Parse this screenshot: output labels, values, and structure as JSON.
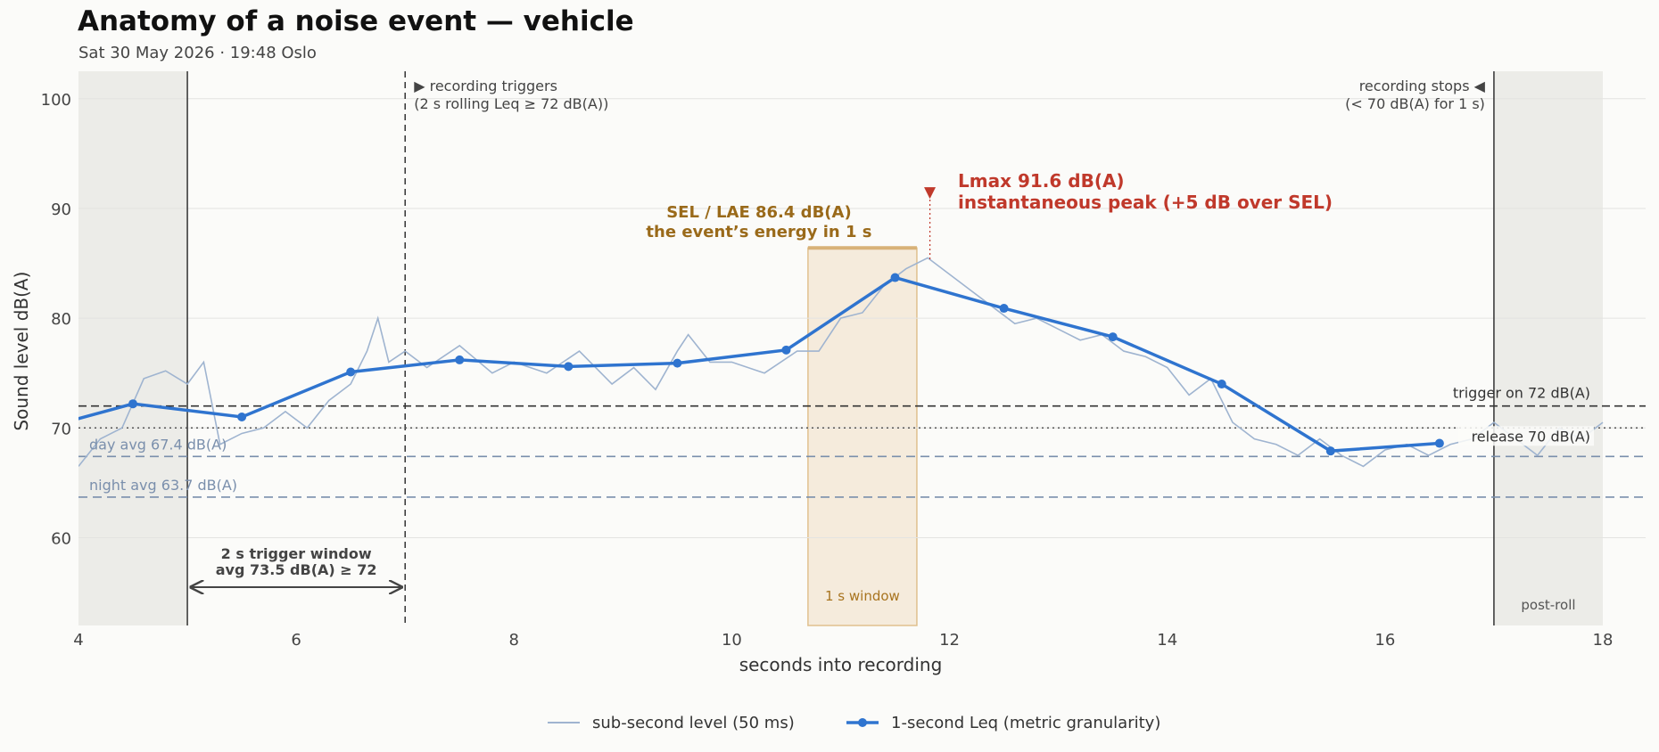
{
  "header": {
    "title": "Anatomy of a noise event — vehicle",
    "subtitle": "Sat 30 May 2026 · 19:48 Oslo"
  },
  "colors": {
    "background": "#fbfbf9",
    "shade": "#ecece8",
    "raw": "#9fb4d0",
    "leq": "#2f74cf",
    "sel_fill": "#f5ebdc",
    "sel_edge": "#e0c08e",
    "sel_text": "#9a6a1a",
    "lmax": "#c0392b",
    "avg_line": "#7a8fac",
    "grid": "#e3e3e1",
    "dark": "#333333"
  },
  "legend": {
    "placement": "bottom-center",
    "raw_label": "sub-second level (50 ms)",
    "leq_label": "1-second Leq (metric granularity)"
  },
  "annotations": {
    "trigger_start": [
      "▶ recording triggers",
      "(2 s rolling Leq ≥ 72 dB(A))"
    ],
    "trigger_stop": [
      "recording stops ◀",
      "(< 70 dB(A) for 1 s)"
    ],
    "sel": [
      "SEL / LAE  86.4 dB(A)",
      "the event’s energy in 1 s"
    ],
    "lmax": [
      "Lmax  91.6 dB(A)",
      "instantaneous peak  (+5 dB over SEL)"
    ],
    "lmax_marker": "▼",
    "trigger_on": "trigger on  72 dB(A)",
    "release": "release  70 dB(A)",
    "day_avg": "day avg  67.4 dB(A)",
    "night_avg": "night avg  63.7 dB(A)",
    "trigger_window": [
      "2 s trigger window",
      "avg 73.5 dB(A) ≥ 72"
    ],
    "window_1s": "1 s window",
    "post_roll": "post-roll"
  },
  "chart_data": {
    "type": "line",
    "xlabel": "seconds into recording",
    "ylabel": "Sound level  dB(A)",
    "xlim": [
      4,
      18
    ],
    "ylim": [
      52,
      102.5
    ],
    "xticks": [
      4,
      6,
      8,
      10,
      12,
      14,
      16,
      18
    ],
    "yticks": [
      60,
      70,
      80,
      90,
      100
    ],
    "grid": "horizontal",
    "series": [
      {
        "name": "1-second Leq (metric granularity)",
        "x": [
          3.5,
          4.5,
          5.5,
          6.5,
          7.5,
          8.5,
          9.5,
          10.5,
          11.5,
          12.5,
          13.5,
          14.5,
          15.5,
          16.5
        ],
        "values": [
          69.5,
          72.2,
          71.0,
          75.1,
          76.2,
          75.6,
          75.9,
          77.1,
          83.7,
          80.9,
          78.3,
          74.0,
          67.9,
          68.6
        ]
      },
      {
        "name": "sub-second level (50 ms)",
        "x": [
          4.0,
          4.2,
          4.4,
          4.6,
          4.8,
          5.0,
          5.15,
          5.3,
          5.5,
          5.7,
          5.9,
          6.1,
          6.3,
          6.5,
          6.65,
          6.75,
          6.85,
          7.0,
          7.2,
          7.5,
          7.8,
          8.0,
          8.3,
          8.6,
          8.9,
          9.1,
          9.3,
          9.5,
          9.6,
          9.8,
          10.0,
          10.3,
          10.6,
          10.8,
          11.0,
          11.2,
          11.4,
          11.6,
          11.8,
          12.0,
          12.2,
          12.4,
          12.6,
          12.8,
          13.0,
          13.2,
          13.4,
          13.6,
          13.8,
          14.0,
          14.2,
          14.4,
          14.6,
          14.8,
          15.0,
          15.2,
          15.4,
          15.6,
          15.8,
          16.0,
          16.2,
          16.4,
          16.6,
          16.8,
          17.0,
          17.2,
          17.4,
          17.6,
          17.8,
          18.0
        ],
        "values": [
          66.5,
          69.0,
          70.0,
          74.5,
          75.2,
          74.0,
          76.0,
          68.5,
          69.5,
          70.0,
          71.5,
          70.0,
          72.5,
          74.0,
          77.0,
          80.0,
          76.0,
          77.0,
          75.5,
          77.5,
          75.0,
          76.0,
          75.0,
          77.0,
          74.0,
          75.5,
          73.5,
          77.0,
          78.5,
          76.0,
          76.0,
          75.0,
          77.0,
          77.0,
          80.0,
          80.5,
          83.0,
          84.5,
          85.5,
          84.0,
          82.5,
          81.0,
          79.5,
          80.0,
          79.0,
          78.0,
          78.5,
          77.0,
          76.5,
          75.5,
          73.0,
          74.5,
          70.5,
          69.0,
          68.5,
          67.5,
          69.0,
          67.5,
          66.5,
          68.0,
          68.5,
          67.5,
          68.5,
          69.0,
          70.5,
          69.0,
          67.5,
          70.0,
          69.0,
          70.5
        ]
      }
    ],
    "reference_lines": [
      {
        "label": "trigger on  72 dB(A)",
        "y": 72
      },
      {
        "label": "release  70 dB(A)",
        "y": 70
      },
      {
        "label": "day avg  67.4 dB(A)",
        "y": 67.4
      },
      {
        "label": "night avg  63.7 dB(A)",
        "y": 63.7
      }
    ],
    "markers": {
      "trigger_start_x": 7.0,
      "pre_roll_end_x": 5.0,
      "recording_stop_x": 17.0,
      "sel_window": [
        10.7,
        11.7
      ],
      "sel_level": 86.4,
      "lmax_x": 11.82,
      "lmax_level": 91.6,
      "trigger_window": [
        5.0,
        7.0
      ]
    }
  }
}
